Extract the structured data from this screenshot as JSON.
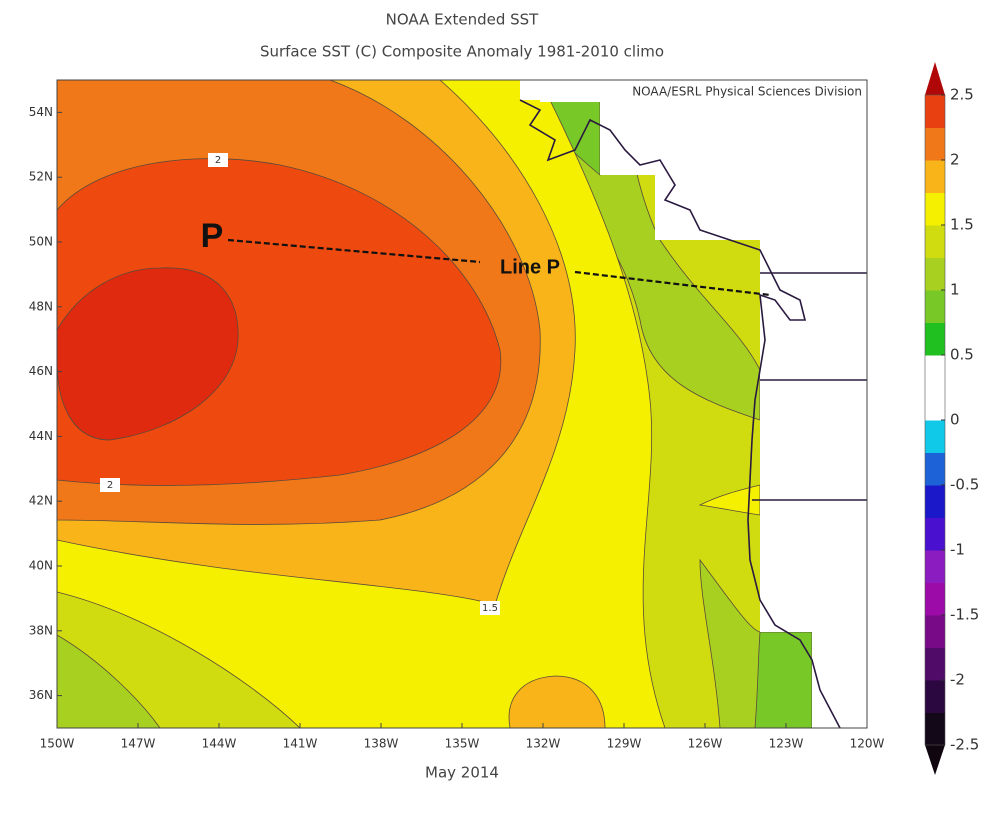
{
  "chart_data": {
    "type": "contour",
    "title": "NOAA Extended SST",
    "subtitle": "Surface SST (C) Composite Anomaly 1981-2010 climo",
    "credit": "NOAA/ESRL Physical Sciences Division",
    "xlabel": "May 2014",
    "xlim": [
      -150,
      -120
    ],
    "ylim": [
      35,
      55
    ],
    "xticks": [
      {
        "value": -150,
        "label": "150W"
      },
      {
        "value": -147,
        "label": "147W"
      },
      {
        "value": -144,
        "label": "144W"
      },
      {
        "value": -141,
        "label": "141W"
      },
      {
        "value": -138,
        "label": "138W"
      },
      {
        "value": -135,
        "label": "135W"
      },
      {
        "value": -132,
        "label": "132W"
      },
      {
        "value": -129,
        "label": "129W"
      },
      {
        "value": -126,
        "label": "126W"
      },
      {
        "value": -123,
        "label": "123W"
      },
      {
        "value": -120,
        "label": "120W"
      }
    ],
    "yticks": [
      {
        "value": 36,
        "label": "36N"
      },
      {
        "value": 38,
        "label": "38N"
      },
      {
        "value": 40,
        "label": "40N"
      },
      {
        "value": 42,
        "label": "42N"
      },
      {
        "value": 44,
        "label": "44N"
      },
      {
        "value": 46,
        "label": "46N"
      },
      {
        "value": 48,
        "label": "48N"
      },
      {
        "value": 50,
        "label": "50N"
      },
      {
        "value": 52,
        "label": "52N"
      },
      {
        "value": 54,
        "label": "54N"
      }
    ],
    "colorbar": {
      "lim": [
        -2.5,
        2.5
      ],
      "ticks": [
        2.5,
        2,
        1.5,
        1,
        0.5,
        0,
        -0.5,
        -1,
        -1.5,
        -2,
        -2.5
      ],
      "colors": [
        "#120818",
        "#2c0840",
        "#500a68",
        "#780a88",
        "#9c0aa8",
        "#8a1cc0",
        "#4a10d0",
        "#1a18c8",
        "#1e62d8",
        "#10c8e8",
        "#ffffff",
        "#ffffff",
        "#20c020",
        "#78c828",
        "#a8d020",
        "#d0dc10",
        "#f4f000",
        "#f8b418",
        "#f07818",
        "#e84010"
      ],
      "over_color": "#b00808",
      "under_color": "#100610"
    },
    "contour_labels": [
      2,
      2,
      1.5
    ],
    "station_label": "P",
    "line_label": "Line P"
  }
}
